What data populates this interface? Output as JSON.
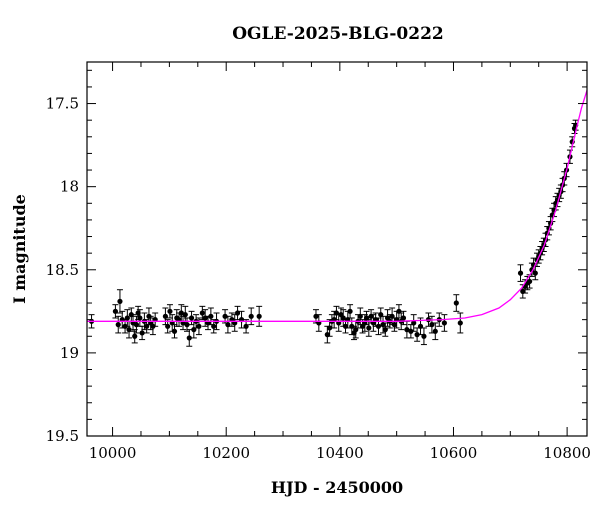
{
  "chart_data": {
    "type": "scatter",
    "title": "OGLE-2025-BLG-0222",
    "xlabel": "HJD - 2450000",
    "ylabel": "I magnitude",
    "xlim": [
      9955,
      10835
    ],
    "ylim": [
      19.5,
      17.25
    ],
    "y_inverted": true,
    "x_ticks": [
      10000,
      10200,
      10400,
      10600,
      10800
    ],
    "x_tick_labels": [
      "10000",
      "10200",
      "10400",
      "10600",
      "10800"
    ],
    "y_ticks": [
      17.5,
      18,
      18.5,
      19,
      19.5
    ],
    "y_tick_labels": [
      "17.5",
      "18",
      "18.5",
      "19",
      "19.5"
    ],
    "grid": false,
    "colors": {
      "points": "#000000",
      "model": "#ff00ff",
      "axes": "#000000"
    },
    "series": [
      {
        "kind": "points_with_errorbars",
        "points": [
          [
            9963,
            18.81,
            0.04
          ],
          [
            10005,
            18.75,
            0.04
          ],
          [
            10010,
            18.83,
            0.05
          ],
          [
            10013,
            18.69,
            0.07
          ],
          [
            10017,
            18.8,
            0.05
          ],
          [
            10022,
            18.84,
            0.04
          ],
          [
            10026,
            18.79,
            0.05
          ],
          [
            10029,
            18.86,
            0.05
          ],
          [
            10033,
            18.77,
            0.04
          ],
          [
            10036,
            18.82,
            0.05
          ],
          [
            10039,
            18.9,
            0.04
          ],
          [
            10042,
            18.83,
            0.05
          ],
          [
            10045,
            18.76,
            0.04
          ],
          [
            10048,
            18.79,
            0.05
          ],
          [
            10052,
            18.88,
            0.04
          ],
          [
            10056,
            18.81,
            0.05
          ],
          [
            10060,
            18.84,
            0.04
          ],
          [
            10064,
            18.78,
            0.05
          ],
          [
            10067,
            18.82,
            0.04
          ],
          [
            10071,
            18.84,
            0.05
          ],
          [
            10075,
            18.8,
            0.04
          ],
          [
            10093,
            18.78,
            0.05
          ],
          [
            10097,
            18.84,
            0.04
          ],
          [
            10101,
            18.75,
            0.04
          ],
          [
            10105,
            18.82,
            0.05
          ],
          [
            10109,
            18.87,
            0.04
          ],
          [
            10113,
            18.79,
            0.05
          ],
          [
            10117,
            18.8,
            0.04
          ],
          [
            10121,
            18.76,
            0.05
          ],
          [
            10124,
            18.82,
            0.04
          ],
          [
            10128,
            18.77,
            0.05
          ],
          [
            10131,
            18.83,
            0.04
          ],
          [
            10135,
            18.91,
            0.05
          ],
          [
            10139,
            18.79,
            0.04
          ],
          [
            10143,
            18.86,
            0.05
          ],
          [
            10147,
            18.81,
            0.04
          ],
          [
            10152,
            18.84,
            0.05
          ],
          [
            10158,
            18.76,
            0.04
          ],
          [
            10163,
            18.79,
            0.05
          ],
          [
            10168,
            18.82,
            0.04
          ],
          [
            10173,
            18.78,
            0.05
          ],
          [
            10178,
            18.84,
            0.04
          ],
          [
            10183,
            18.81,
            0.05
          ],
          [
            10198,
            18.78,
            0.04
          ],
          [
            10203,
            18.83,
            0.05
          ],
          [
            10210,
            18.8,
            0.04
          ],
          [
            10215,
            18.82,
            0.05
          ],
          [
            10220,
            18.76,
            0.04
          ],
          [
            10227,
            18.8,
            0.05
          ],
          [
            10235,
            18.84,
            0.04
          ],
          [
            10244,
            18.78,
            0.05
          ],
          [
            10258,
            18.78,
            0.06
          ],
          [
            10358,
            18.78,
            0.04
          ],
          [
            10363,
            18.82,
            0.05
          ],
          [
            10378,
            18.89,
            0.05
          ],
          [
            10382,
            18.85,
            0.05
          ],
          [
            10386,
            18.81,
            0.04
          ],
          [
            10390,
            18.8,
            0.05
          ],
          [
            10394,
            18.76,
            0.04
          ],
          [
            10398,
            18.82,
            0.05
          ],
          [
            10402,
            18.77,
            0.04
          ],
          [
            10406,
            18.79,
            0.05
          ],
          [
            10410,
            18.84,
            0.04
          ],
          [
            10414,
            18.8,
            0.05
          ],
          [
            10418,
            18.75,
            0.04
          ],
          [
            10421,
            18.84,
            0.05
          ],
          [
            10425,
            18.88,
            0.04
          ],
          [
            10428,
            18.86,
            0.05
          ],
          [
            10432,
            18.81,
            0.04
          ],
          [
            10436,
            18.78,
            0.05
          ],
          [
            10440,
            18.84,
            0.04
          ],
          [
            10444,
            18.82,
            0.05
          ],
          [
            10447,
            18.79,
            0.04
          ],
          [
            10451,
            18.85,
            0.05
          ],
          [
            10455,
            18.78,
            0.04
          ],
          [
            10459,
            18.82,
            0.05
          ],
          [
            10463,
            18.8,
            0.04
          ],
          [
            10468,
            18.84,
            0.05
          ],
          [
            10472,
            18.77,
            0.04
          ],
          [
            10476,
            18.83,
            0.05
          ],
          [
            10480,
            18.86,
            0.04
          ],
          [
            10484,
            18.79,
            0.05
          ],
          [
            10488,
            18.81,
            0.04
          ],
          [
            10492,
            18.78,
            0.05
          ],
          [
            10496,
            18.83,
            0.04
          ],
          [
            10500,
            18.8,
            0.05
          ],
          [
            10504,
            18.75,
            0.04
          ],
          [
            10508,
            18.81,
            0.05
          ],
          [
            10512,
            18.79,
            0.04
          ],
          [
            10518,
            18.86,
            0.05
          ],
          [
            10525,
            18.87,
            0.04
          ],
          [
            10530,
            18.82,
            0.05
          ],
          [
            10536,
            18.89,
            0.04
          ],
          [
            10542,
            18.84,
            0.05
          ],
          [
            10548,
            18.9,
            0.05
          ],
          [
            10556,
            18.8,
            0.04
          ],
          [
            10562,
            18.83,
            0.05
          ],
          [
            10568,
            18.87,
            0.05
          ],
          [
            10575,
            18.8,
            0.04
          ],
          [
            10584,
            18.82,
            0.05
          ],
          [
            10605,
            18.7,
            0.05
          ],
          [
            10612,
            18.82,
            0.06
          ],
          [
            10718,
            18.52,
            0.05
          ],
          [
            10722,
            18.63,
            0.04
          ],
          [
            10726,
            18.6,
            0.04
          ],
          [
            10730,
            18.58,
            0.04
          ],
          [
            10734,
            18.57,
            0.04
          ],
          [
            10738,
            18.5,
            0.04
          ],
          [
            10741,
            18.47,
            0.04
          ],
          [
            10744,
            18.52,
            0.04
          ],
          [
            10747,
            18.44,
            0.04
          ],
          [
            10750,
            18.42,
            0.04
          ],
          [
            10753,
            18.4,
            0.04
          ],
          [
            10756,
            18.37,
            0.04
          ],
          [
            10759,
            18.35,
            0.04
          ],
          [
            10762,
            18.32,
            0.04
          ],
          [
            10765,
            18.28,
            0.04
          ],
          [
            10768,
            18.25,
            0.04
          ],
          [
            10771,
            18.22,
            0.04
          ],
          [
            10774,
            18.17,
            0.04
          ],
          [
            10777,
            18.14,
            0.04
          ],
          [
            10780,
            18.1,
            0.04
          ],
          [
            10783,
            18.08,
            0.04
          ],
          [
            10786,
            18.05,
            0.04
          ],
          [
            10789,
            18.03,
            0.04
          ],
          [
            10792,
            17.99,
            0.04
          ],
          [
            10795,
            17.95,
            0.04
          ],
          [
            10799,
            17.9,
            0.04
          ],
          [
            10805,
            17.82,
            0.04
          ],
          [
            10809,
            17.73,
            0.03
          ],
          [
            10813,
            17.65,
            0.03
          ],
          [
            10815,
            17.63,
            0.03
          ]
        ]
      },
      {
        "kind": "model_curve",
        "points": [
          [
            9955,
            18.81
          ],
          [
            10300,
            18.81
          ],
          [
            10500,
            18.81
          ],
          [
            10580,
            18.8
          ],
          [
            10620,
            18.79
          ],
          [
            10650,
            18.77
          ],
          [
            10680,
            18.73
          ],
          [
            10700,
            18.68
          ],
          [
            10720,
            18.61
          ],
          [
            10740,
            18.5
          ],
          [
            10760,
            18.35
          ],
          [
            10780,
            18.14
          ],
          [
            10800,
            17.89
          ],
          [
            10815,
            17.67
          ],
          [
            10825,
            17.53
          ],
          [
            10835,
            17.42
          ]
        ]
      }
    ]
  }
}
